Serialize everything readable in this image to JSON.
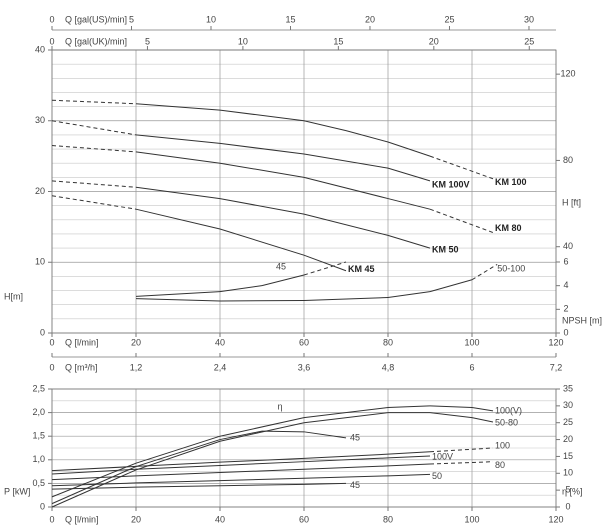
{
  "chart_data": [
    {
      "type": "line",
      "grid": true,
      "color": "#333333",
      "x_label": "Q [l/min]",
      "xlim": [
        0,
        120
      ],
      "xticks": [
        0,
        20,
        40,
        60,
        80,
        100,
        120
      ],
      "y_label": "H[m]",
      "ylim": [
        0,
        40
      ],
      "yticks": [
        0,
        10,
        20,
        30,
        40
      ],
      "minor_yticks": [
        2,
        4,
        6,
        8,
        12,
        14,
        16,
        18,
        22,
        24,
        26,
        28,
        32,
        34,
        36,
        38
      ],
      "y2_label": "H [ft]",
      "y2lim": [
        0,
        131.2
      ],
      "y2ticks": [
        40,
        80,
        120
      ],
      "npsh_label": "NPSH [m]",
      "npsh_lim": [
        0,
        6
      ],
      "npsh_ticks": [
        0,
        2,
        4,
        6
      ],
      "top_axes": [
        {
          "label": "Q [gal(US)/min]",
          "lim": [
            0,
            31.7
          ],
          "ticks": [
            0,
            5,
            10,
            15,
            20,
            25,
            30
          ]
        },
        {
          "label": "Q [gal(UK)/min]",
          "lim": [
            0,
            26.4
          ],
          "ticks": [
            0,
            5,
            10,
            15,
            20,
            25
          ]
        }
      ],
      "flow_axis": {
        "label": "Q [m³/h]",
        "lim": [
          0,
          7.2
        ],
        "ticks": [
          0,
          {
            "value": 1.2,
            "label": "1,2"
          },
          {
            "value": 2.4,
            "label": "2,4"
          },
          {
            "value": 3.6,
            "label": "3,6"
          },
          {
            "value": 4.8,
            "label": "4,8"
          },
          6,
          {
            "value": 7.2,
            "label": "7,2"
          }
        ]
      },
      "series": [
        {
          "name": "KM 100",
          "x": [
            0,
            20,
            40,
            60,
            70,
            80,
            90,
            105
          ],
          "values": [
            32.9,
            32.4,
            31.5,
            30,
            28.6,
            27,
            25,
            21.8
          ],
          "segment_dashed": [
            true,
            false,
            false,
            false,
            false,
            false,
            true
          ]
        },
        {
          "name": "KM 100V",
          "x": [
            0,
            20,
            40,
            60,
            80,
            90
          ],
          "values": [
            30,
            28,
            26.8,
            25.3,
            23.3,
            21.5
          ],
          "segment_dashed": [
            true,
            false,
            false,
            false,
            false
          ]
        },
        {
          "name": "KM 80",
          "x": [
            0,
            20,
            40,
            60,
            80,
            90,
            105
          ],
          "values": [
            26.5,
            25.6,
            24,
            22,
            19,
            17.5,
            14.2
          ],
          "segment_dashed": [
            true,
            false,
            false,
            false,
            false,
            true
          ]
        },
        {
          "name": "KM 50",
          "x": [
            0,
            20,
            40,
            60,
            80,
            90
          ],
          "values": [
            21.5,
            20.6,
            19,
            16.8,
            13.8,
            12
          ],
          "segment_dashed": [
            true,
            false,
            false,
            false,
            false
          ]
        },
        {
          "name": "KM 45",
          "x": [
            0,
            20,
            40,
            60,
            70
          ],
          "values": [
            19.4,
            17.5,
            14.7,
            11,
            8.8
          ],
          "segment_dashed": [
            true,
            false,
            false,
            false
          ]
        },
        {
          "name": "45",
          "axis": "npsh",
          "x": [
            20,
            40,
            50,
            60,
            70
          ],
          "values": [
            3.1,
            3.5,
            4.0,
            4.9,
            6.0
          ],
          "segment_dashed": [
            false,
            false,
            false,
            true
          ]
        },
        {
          "name": "50-100",
          "axis": "npsh",
          "x": [
            20,
            40,
            60,
            80,
            90,
            100,
            106
          ],
          "values": [
            2.9,
            2.7,
            2.75,
            3.0,
            3.5,
            4.5,
            5.8
          ],
          "segment_dashed": [
            false,
            false,
            false,
            false,
            false,
            true
          ]
        }
      ]
    },
    {
      "type": "line",
      "grid": true,
      "color": "#333333",
      "x_label": "Q [l/min]",
      "xlim": [
        0,
        120
      ],
      "xticks": [
        0,
        20,
        40,
        60,
        80,
        100,
        120
      ],
      "y_label": "P [kW]",
      "ylim": [
        0,
        2.5
      ],
      "yticks": [
        0,
        {
          "value": 0.5,
          "label": "0,5"
        },
        {
          "value": 1,
          "label": "1,0"
        },
        {
          "value": 1.5,
          "label": "1,5"
        },
        {
          "value": 2,
          "label": "2,0"
        },
        {
          "value": 2.5,
          "label": "2,5"
        }
      ],
      "minor_yticks": [
        0.25,
        0.75,
        1.25,
        1.75,
        2.25
      ],
      "y2_label": "η [%]",
      "y2lim": [
        0,
        35
      ],
      "y2ticks": [
        0,
        5,
        10,
        15,
        20,
        25,
        30,
        35
      ],
      "curve_group_label": "η",
      "series": [
        {
          "name": "100(V)",
          "axis": "y2",
          "x": [
            0,
            20,
            40,
            60,
            80,
            90,
            100,
            105
          ],
          "values": [
            3,
            13,
            21,
            26.5,
            29.5,
            30,
            29.5,
            28.5
          ],
          "segment_dashed": [
            false,
            false,
            false,
            false,
            false,
            false,
            false
          ]
        },
        {
          "name": "50-80",
          "axis": "y2",
          "x": [
            0,
            20,
            40,
            60,
            80,
            90,
            100,
            105
          ],
          "values": [
            0,
            11,
            19.5,
            25,
            28,
            28,
            26.5,
            25.2
          ],
          "segment_dashed": [
            false,
            false,
            false,
            false,
            false,
            false,
            false
          ]
        },
        {
          "name": "45",
          "axis": "y2",
          "x": [
            0,
            20,
            40,
            50,
            60,
            70
          ],
          "values": [
            1,
            12,
            20,
            22.5,
            22.3,
            20.5
          ],
          "segment_dashed": [
            false,
            false,
            false,
            false,
            false
          ]
        },
        {
          "name": "100",
          "x": [
            0,
            20,
            40,
            60,
            80,
            90,
            105
          ],
          "values": [
            0.77,
            0.86,
            0.95,
            1.03,
            1.12,
            1.17,
            1.25
          ],
          "segment_dashed": [
            false,
            false,
            false,
            false,
            false,
            true
          ]
        },
        {
          "name": "100V",
          "x": [
            0,
            20,
            40,
            60,
            80,
            90
          ],
          "values": [
            0.7,
            0.8,
            0.88,
            0.96,
            1.04,
            1.08
          ],
          "segment_dashed": [
            false,
            false,
            false,
            false,
            false
          ]
        },
        {
          "name": "80",
          "x": [
            0,
            20,
            40,
            60,
            80,
            90,
            105
          ],
          "values": [
            0.58,
            0.66,
            0.73,
            0.8,
            0.87,
            0.91,
            0.96
          ],
          "segment_dashed": [
            false,
            false,
            false,
            false,
            false,
            true
          ]
        },
        {
          "name": "50",
          "x": [
            0,
            20,
            40,
            60,
            80,
            90
          ],
          "values": [
            0.45,
            0.51,
            0.56,
            0.61,
            0.66,
            0.69
          ],
          "segment_dashed": [
            false,
            false,
            false,
            false,
            false
          ]
        },
        {
          "name": "45",
          "x": [
            0,
            20,
            40,
            60,
            70
          ],
          "values": [
            0.38,
            0.42,
            0.45,
            0.48,
            0.5
          ],
          "segment_dashed": [
            false,
            false,
            false,
            false
          ]
        }
      ]
    }
  ]
}
